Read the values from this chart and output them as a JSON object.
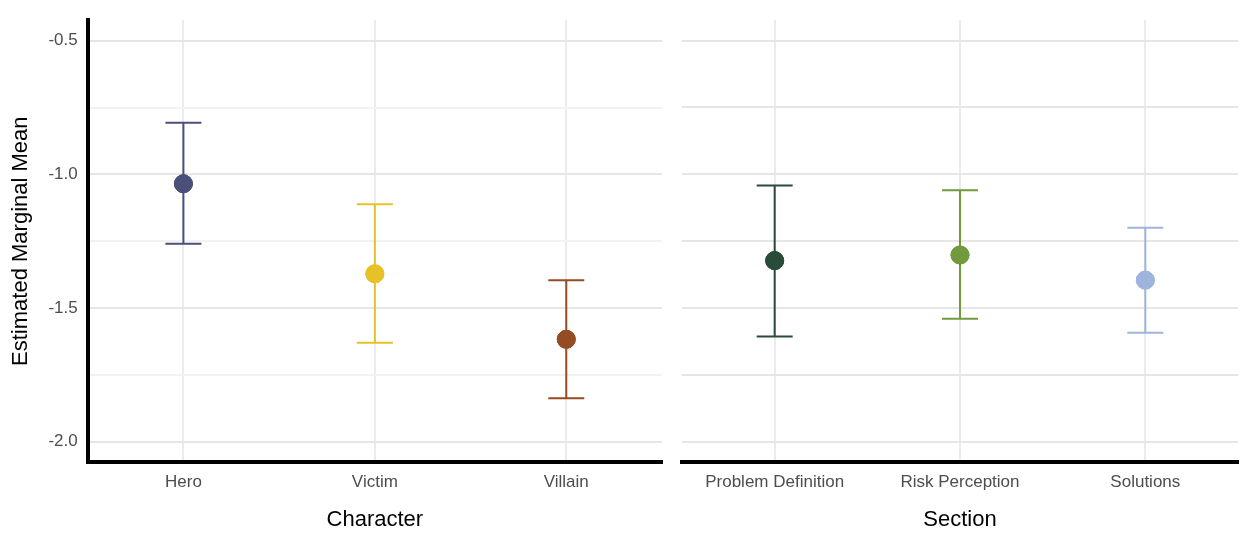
{
  "chart_data": [
    {
      "type": "scatter",
      "xlabel": "Character",
      "ylabel": "Estimated Marginal Mean",
      "categories": [
        "Hero",
        "Victim",
        "Villain"
      ],
      "values": [
        -1.035,
        -1.372,
        -1.617
      ],
      "colors": [
        "#4a5079",
        "#e6c228",
        "#944c22"
      ],
      "errors": [
        [
          -1.26,
          -0.807
        ],
        [
          -1.63,
          -1.112
        ],
        [
          -1.838,
          -1.396
        ]
      ],
      "ylim": [
        -2.077,
        -0.423
      ],
      "yticks": [
        {
          "value": -2.0,
          "label": "-2.0"
        },
        {
          "value": -1.75,
          "label": null
        },
        {
          "value": -1.5,
          "label": "-1.5"
        },
        {
          "value": -1.25,
          "label": null
        },
        {
          "value": -1.0,
          "label": "-1.0"
        },
        {
          "value": -0.75,
          "label": null
        },
        {
          "value": -0.5,
          "label": "-0.5"
        }
      ],
      "grid": true,
      "marker": "circle",
      "legend": false
    },
    {
      "type": "scatter",
      "xlabel": "Section",
      "categories": [
        "Problem Definition",
        "Risk Perception",
        "Solutions"
      ],
      "values": [
        -1.323,
        -1.302,
        -1.396
      ],
      "colors": [
        "#2a4a3a",
        "#719a3f",
        "#9fb4dc"
      ],
      "errors": [
        [
          -1.607,
          -1.042
        ],
        [
          -1.54,
          -1.06
        ],
        [
          -1.593,
          -1.2
        ]
      ],
      "ylim": [
        -2.077,
        -0.423
      ],
      "yticks": [
        -2,
        -1.75,
        -1.5,
        -1.25,
        -1,
        -0.75,
        -0.5
      ],
      "tick_labels": "x",
      "grid": true,
      "marker": "circle",
      "legend": false
    }
  ]
}
